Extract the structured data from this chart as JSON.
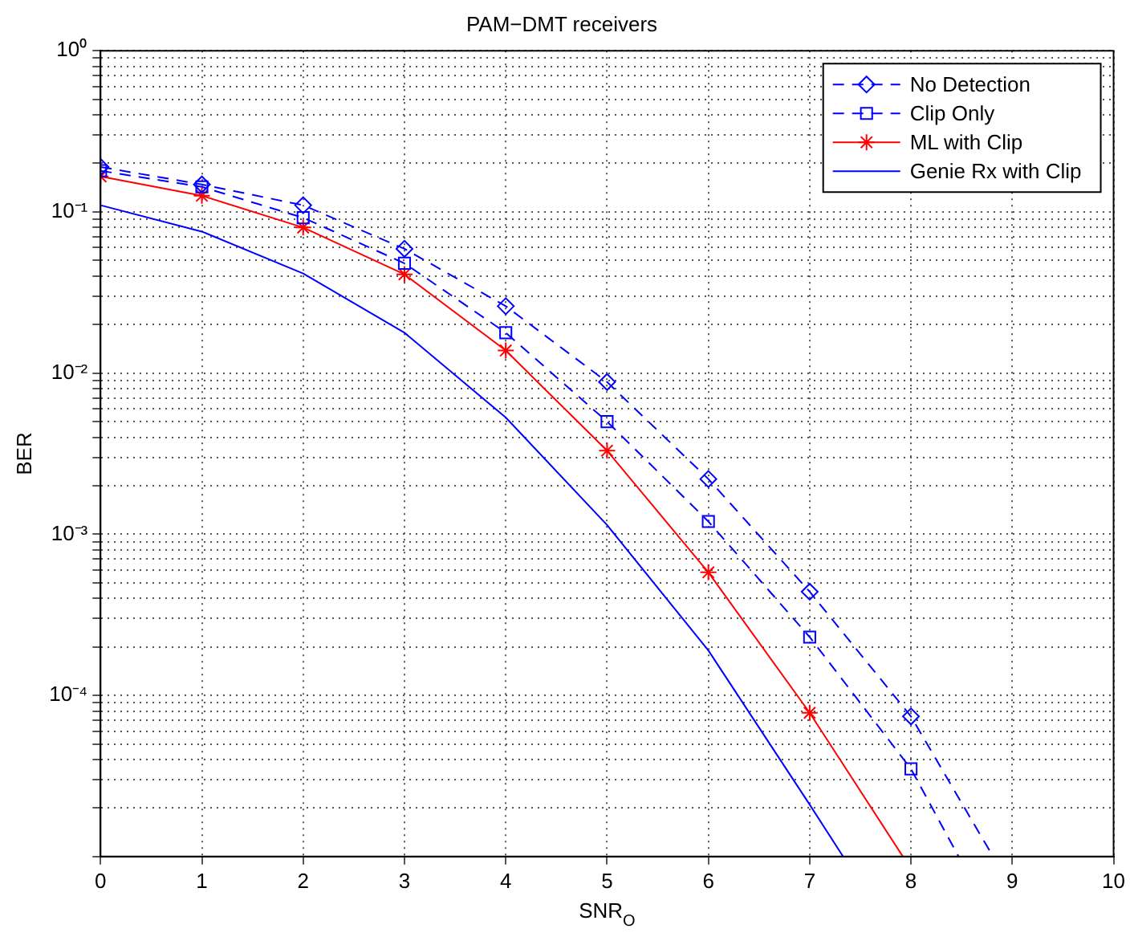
{
  "chart_data": {
    "type": "line",
    "title": "PAM−DMT receivers",
    "xlabel": "SNR$_{O}$",
    "ylabel": "BER",
    "xlim": [
      0,
      10
    ],
    "xticks": [
      0,
      1,
      2,
      3,
      4,
      5,
      6,
      7,
      8,
      9,
      10
    ],
    "ylim": [
      1e-05,
      1
    ],
    "yticks": [
      {
        "value": 1e-05,
        "label": null
      },
      {
        "value": 2e-05,
        "label": null
      },
      {
        "value": 3e-05,
        "label": null
      },
      {
        "value": 4e-05,
        "label": null
      },
      {
        "value": 5e-05,
        "label": null
      },
      {
        "value": 6e-05,
        "label": null
      },
      {
        "value": 7e-05,
        "label": null
      },
      {
        "value": 8e-05,
        "label": null
      },
      {
        "value": 9e-05,
        "label": null
      },
      {
        "value": 0.0001,
        "label": "10⁻⁴"
      },
      {
        "value": 0.0002,
        "label": null
      },
      {
        "value": 0.0003,
        "label": null
      },
      {
        "value": 0.0004,
        "label": null
      },
      {
        "value": 0.0005,
        "label": null
      },
      {
        "value": 0.0006,
        "label": null
      },
      {
        "value": 0.0007,
        "label": null
      },
      {
        "value": 0.0008,
        "label": null
      },
      {
        "value": 0.0009,
        "label": null
      },
      {
        "value": 0.001,
        "label": "10⁻³"
      },
      {
        "value": 0.002,
        "label": null
      },
      {
        "value": 0.003,
        "label": null
      },
      {
        "value": 0.004,
        "label": null
      },
      {
        "value": 0.005,
        "label": null
      },
      {
        "value": 0.006,
        "label": null
      },
      {
        "value": 0.007,
        "label": null
      },
      {
        "value": 0.008,
        "label": null
      },
      {
        "value": 0.009,
        "label": null
      },
      {
        "value": 0.01,
        "label": "10⁻²"
      },
      {
        "value": 0.02,
        "label": null
      },
      {
        "value": 0.03,
        "label": null
      },
      {
        "value": 0.04,
        "label": null
      },
      {
        "value": 0.05,
        "label": null
      },
      {
        "value": 0.06,
        "label": null
      },
      {
        "value": 0.07,
        "label": null
      },
      {
        "value": 0.08,
        "label": null
      },
      {
        "value": 0.09,
        "label": null
      },
      {
        "value": 0.1,
        "label": "10⁻¹"
      },
      {
        "value": 0.2,
        "label": null
      },
      {
        "value": 0.3,
        "label": null
      },
      {
        "value": 0.4,
        "label": null
      },
      {
        "value": 0.5,
        "label": null
      },
      {
        "value": 0.6,
        "label": null
      },
      {
        "value": 0.7,
        "label": null
      },
      {
        "value": 0.8,
        "label": null
      },
      {
        "value": 0.9,
        "label": null
      },
      {
        "value": 1,
        "label": "10⁰"
      }
    ],
    "log": "y",
    "grid": true,
    "legend": "top right",
    "series": [
      {
        "name": "No Detection",
        "color": "#0000ff",
        "marker": "diamond",
        "line_style": "dashed",
        "x": [
          0,
          1,
          2,
          3,
          4,
          5,
          6,
          7,
          8,
          8.81
        ],
        "values": [
          0.19,
          0.148,
          0.11,
          0.059,
          0.026,
          0.0088,
          0.0022,
          0.00044,
          7.4e-05,
          1e-05
        ]
      },
      {
        "name": "Clip Only",
        "color": "#0000ff",
        "marker": "square",
        "line_style": "dashed",
        "x": [
          0,
          1,
          2,
          3,
          4,
          5,
          6,
          7,
          8,
          8.47
        ],
        "values": [
          0.18,
          0.143,
          0.092,
          0.048,
          0.0178,
          0.005,
          0.0012,
          0.00023,
          3.5e-05,
          1e-05
        ]
      },
      {
        "name": "ML with Clip",
        "color": "#ff0000",
        "marker": "cross",
        "line_style": "solid",
        "x": [
          0,
          1,
          2,
          3,
          4,
          5,
          6,
          7,
          7.92
        ],
        "values": [
          0.166,
          0.126,
          0.08,
          0.041,
          0.0138,
          0.0033,
          0.00058,
          7.8e-05,
          1e-05
        ]
      },
      {
        "name": "Genie Rx with Clip",
        "color": "#0000ff",
        "marker": "none",
        "line_style": "solid",
        "x": [
          0,
          1,
          2,
          3,
          4,
          5,
          6,
          7,
          7.33
        ],
        "values": [
          0.11,
          0.0755,
          0.0415,
          0.0178,
          0.0053,
          0.00114,
          0.00019,
          2.1e-05,
          1e-05
        ]
      }
    ]
  }
}
